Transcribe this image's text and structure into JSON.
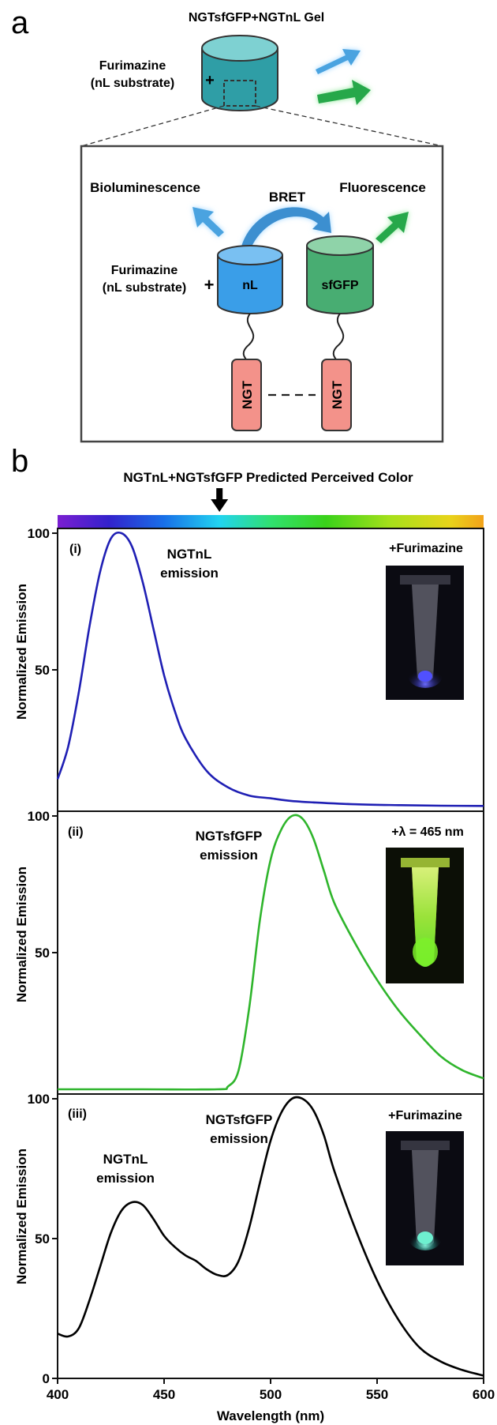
{
  "panel_a": {
    "letter": "a",
    "gel_title": "NGTsfGFP+NGTnL Gel",
    "substrate_line1": "Furimazine",
    "substrate_line2": "(nL substrate)",
    "plus": "+",
    "bioluminescence_label": "Bioluminescence",
    "bret_label": "BRET",
    "fluorescence_label": "Fluorescence",
    "nl_label": "nL",
    "sfgfp_label": "sfGFP",
    "ngt_label": "NGT",
    "colors": {
      "gel": "#55b7bd",
      "nl": "#4aa8ea",
      "sfgfp": "#5ab487",
      "ngt": "#f3928a",
      "blue_arrow": "#4aa3e0",
      "green_arrow": "#26a84a"
    }
  },
  "panel_b": {
    "letter": "b",
    "color_bar_title": "NGTnL+NGTsfGFP Predicted Perceived Color",
    "color_bar_marker_nm": 476,
    "xlabel": "Wavelength (nm)",
    "ylabel": "Normalized Emission",
    "xticks": [
      "400",
      "450",
      "500",
      "550",
      "600"
    ],
    "subplots": [
      {
        "tag": "(i)",
        "annotations": [
          {
            "line1": "NGTnL",
            "line2": "emission"
          }
        ],
        "condition": "+Furimazine",
        "yticks": [
          "100",
          "50"
        ],
        "photo": "blue-glow-tube"
      },
      {
        "tag": "(ii)",
        "annotations": [
          {
            "line1": "NGTsfGFP",
            "line2": "emission"
          }
        ],
        "condition": "+λ = 465 nm",
        "yticks": [
          "100",
          "50"
        ],
        "photo": "green-glow-tube"
      },
      {
        "tag": "(iii)",
        "annotations": [
          {
            "line1": "NGTsfGFP",
            "line2": "emission"
          },
          {
            "line1": "NGTnL",
            "line2": "emission"
          }
        ],
        "condition": "+Furimazine",
        "yticks": [
          "100",
          "50",
          "0"
        ],
        "photo": "cyan-glow-tube"
      }
    ]
  },
  "chart_data": [
    {
      "type": "line",
      "name": "(i)",
      "xlabel": "Wavelength (nm)",
      "ylabel": "Normalized Emission",
      "xlim": [
        400,
        600
      ],
      "ylim": [
        0,
        100
      ],
      "color": "#1f1fb4",
      "x": [
        400,
        405,
        410,
        415,
        420,
        425,
        430,
        435,
        440,
        445,
        450,
        455,
        460,
        470,
        480,
        490,
        500,
        510,
        520,
        540,
        560,
        580,
        600
      ],
      "y": [
        10,
        22,
        42,
        66,
        86,
        98,
        100,
        95,
        82,
        65,
        48,
        35,
        25,
        13,
        7,
        4,
        3,
        2,
        1.5,
        0.8,
        0.5,
        0.3,
        0.2
      ]
    },
    {
      "type": "line",
      "name": "(ii)",
      "xlabel": "Wavelength (nm)",
      "ylabel": "Normalized Emission",
      "xlim": [
        400,
        600
      ],
      "ylim": [
        0,
        100
      ],
      "color": "#2fb52c",
      "x": [
        400,
        440,
        475,
        480,
        485,
        490,
        495,
        500,
        505,
        510,
        515,
        520,
        525,
        530,
        540,
        550,
        560,
        570,
        580,
        590,
        600
      ],
      "y": [
        0,
        0,
        0,
        1,
        7,
        30,
        62,
        84,
        95,
        100,
        99,
        92,
        80,
        68,
        53,
        40,
        29,
        20,
        12,
        7,
        4
      ]
    },
    {
      "type": "line",
      "name": "(iii)",
      "xlabel": "Wavelength (nm)",
      "ylabel": "Normalized Emission",
      "xlim": [
        400,
        600
      ],
      "ylim": [
        0,
        100
      ],
      "color": "#000000",
      "x": [
        400,
        405,
        410,
        415,
        420,
        425,
        430,
        435,
        440,
        445,
        450,
        455,
        460,
        465,
        470,
        475,
        480,
        485,
        490,
        495,
        500,
        505,
        510,
        515,
        520,
        525,
        530,
        540,
        550,
        560,
        570,
        580,
        590,
        600
      ],
      "y": [
        16,
        15,
        18,
        28,
        40,
        52,
        60,
        63,
        62,
        57,
        51,
        47,
        44,
        42,
        39,
        37,
        37,
        42,
        54,
        70,
        85,
        95,
        100,
        100,
        96,
        87,
        74,
        53,
        35,
        21,
        11,
        6,
        3,
        1
      ]
    }
  ]
}
